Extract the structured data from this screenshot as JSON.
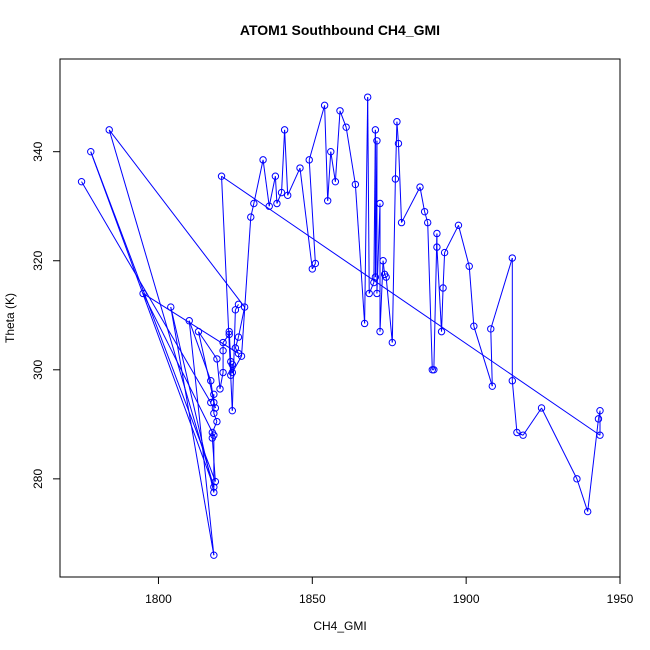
{
  "chart_data": {
    "type": "line",
    "title": "ATOM1 Southbound CH4_GMI",
    "xlabel": "CH4_GMI",
    "ylabel": "Theta (K)",
    "xlim": [
      1768,
      1950
    ],
    "ylim": [
      262,
      357
    ],
    "xticks": [
      1800,
      1850,
      1900,
      1950
    ],
    "yticks": [
      280,
      300,
      320,
      340
    ],
    "grid": false,
    "series": [
      {
        "color": "#0000ff",
        "marker": "open-circle",
        "points": [
          [
            1775,
            334.5
          ],
          [
            1817,
            294
          ],
          [
            1818,
            295.5
          ],
          [
            1818,
            292
          ],
          [
            1819,
            290.5
          ],
          [
            1817.5,
            288.5
          ],
          [
            1817.5,
            287.5
          ],
          [
            1818.5,
            279.5
          ],
          [
            1778,
            340
          ],
          [
            1818,
            278.5
          ],
          [
            1784,
            344
          ],
          [
            1828,
            311.5
          ],
          [
            1826,
            306
          ],
          [
            1825,
            304
          ],
          [
            1826,
            303
          ],
          [
            1795,
            314
          ],
          [
            1818,
            288
          ],
          [
            1818,
            277.5
          ],
          [
            1804,
            311.5
          ],
          [
            1818,
            266
          ],
          [
            1810,
            309
          ],
          [
            1817,
            298
          ],
          [
            1818,
            294
          ],
          [
            1818.5,
            293
          ],
          [
            1813,
            307
          ],
          [
            1819,
            302
          ],
          [
            1820,
            296.5
          ],
          [
            1821,
            299.5
          ],
          [
            1821,
            303.5
          ],
          [
            1821,
            305
          ],
          [
            1823,
            306.5
          ],
          [
            1823,
            307
          ],
          [
            1823.5,
            301.5
          ],
          [
            1823.5,
            299
          ],
          [
            1824,
            301
          ],
          [
            1824,
            299.5
          ],
          [
            1827,
            302.5
          ],
          [
            1830,
            328
          ],
          [
            1831,
            330.5
          ],
          [
            1834,
            338.5
          ],
          [
            1836,
            330
          ],
          [
            1838,
            335.5
          ],
          [
            1838.5,
            330.5
          ],
          [
            1840,
            332.5
          ],
          [
            1841,
            344
          ],
          [
            1842,
            332
          ],
          [
            1846,
            337
          ],
          [
            1850,
            318.5
          ],
          [
            1851,
            319.5
          ],
          [
            1849,
            338.5
          ],
          [
            1854,
            348.5
          ],
          [
            1855,
            331
          ],
          [
            1856,
            340
          ],
          [
            1857.5,
            334.5
          ],
          [
            1859,
            347.5
          ],
          [
            1861,
            344.5
          ],
          [
            1864,
            334
          ],
          [
            1867,
            308.5
          ],
          [
            1868,
            350
          ],
          [
            1868.5,
            314
          ],
          [
            1870,
            316
          ],
          [
            1870.5,
            344
          ],
          [
            1870.5,
            317
          ],
          [
            1871,
            342
          ],
          [
            1871,
            314
          ],
          [
            1872,
            330.5
          ],
          [
            1872,
            307
          ],
          [
            1873,
            320
          ],
          [
            1873.5,
            317.5
          ],
          [
            1874,
            317
          ],
          [
            1876,
            305
          ],
          [
            1877,
            335
          ],
          [
            1877.5,
            345.5
          ],
          [
            1878,
            341.5
          ],
          [
            1879,
            327
          ],
          [
            1885,
            333.5
          ],
          [
            1886.5,
            329
          ],
          [
            1887.5,
            327
          ],
          [
            1889,
            300
          ],
          [
            1889.5,
            300
          ],
          [
            1890.5,
            325
          ],
          [
            1890.5,
            322.5
          ],
          [
            1892,
            307
          ],
          [
            1892.5,
            315
          ],
          [
            1893,
            321.5
          ],
          [
            1897.5,
            326.5
          ],
          [
            1901,
            319
          ],
          [
            1902.5,
            308
          ],
          [
            1908.5,
            297
          ],
          [
            1908,
            307.5
          ],
          [
            1915,
            320.5
          ],
          [
            1915,
            298
          ],
          [
            1916.5,
            288.5
          ],
          [
            1918.5,
            288
          ],
          [
            1924.5,
            293
          ],
          [
            1936,
            280
          ],
          [
            1939.5,
            274
          ],
          [
            1943,
            291
          ],
          [
            1943.5,
            292.5
          ],
          [
            1943.5,
            288
          ],
          [
            1820.5,
            335.5
          ],
          [
            1824,
            292.5
          ],
          [
            1825,
            311
          ],
          [
            1826,
            312
          ]
        ]
      }
    ]
  }
}
